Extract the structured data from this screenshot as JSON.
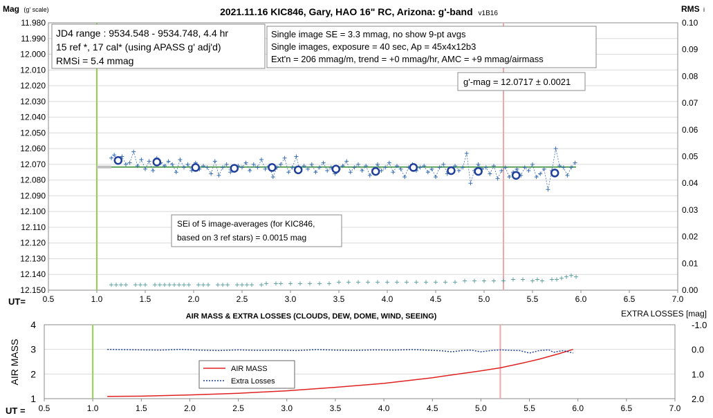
{
  "chart_data": [
    {
      "type": "scatter",
      "title": "2021.11.16 KIC846, Gary, HAO 16\" RC, Arizona: g'-band",
      "version_tag": "v1B16",
      "ylabel": "Mag",
      "ylabel_note": "(g' scale)",
      "y2label": "RMS",
      "y2label_note": "i",
      "xlabel": "UT=",
      "xlim": [
        0.5,
        7.0
      ],
      "ylim_reversed": [
        11.98,
        12.15
      ],
      "y2lim": [
        0.0,
        0.1
      ],
      "x_ticks": [
        "0.5",
        "1.0",
        "1.5",
        "2.0",
        "2.5",
        "3.0",
        "3.5",
        "4.0",
        "4.5",
        "5.0",
        "5.5",
        "6.0",
        "6.5",
        "7.0"
      ],
      "y_ticks": [
        "11.980",
        "11.990",
        "12.000",
        "12.010",
        "12.020",
        "12.030",
        "12.040",
        "12.050",
        "12.060",
        "12.070",
        "12.080",
        "12.090",
        "12.100",
        "12.110",
        "12.120",
        "12.130",
        "12.140",
        "12.150"
      ],
      "y2_ticks": [
        "0.10",
        "0.09",
        "0.08",
        "0.07",
        "0.06",
        "0.05",
        "0.04",
        "0.03",
        "0.02",
        "0.01",
        "0.00"
      ],
      "grid": "horizontal",
      "annotations": {
        "jd_box": [
          "JD4 range : 9534.548 - 9534.748,  4.4  hr",
          "15 ref *, 17 cal* (using APASS g' adj'd)",
          "RMSi = 5.4 mmag"
        ],
        "info_box": [
          "Single image SE = 3.3 mmag, no show  9-pt avgs",
          "Single images, exposure = 40 sec, Ap = 45x4x12b3",
          "Ext'n = 206 mmag/m, trend = +0 mmag/hr, AMC = +9 mmag/airmass"
        ],
        "gmag_box": "g'-mag = 12.0717 ± 0.0021",
        "sei_box": [
          "SEi of 5 image-averages (for KIC846,",
          "based on 3 ref stars) = 0.0015 mag"
        ]
      },
      "vertical_markers": [
        {
          "x": 1.0,
          "color": "#92d050"
        },
        {
          "x": 5.2,
          "color": "#f4a6a6"
        }
      ],
      "trend_line": {
        "x": [
          1.15,
          5.95
        ],
        "y": [
          12.0717,
          12.0717
        ],
        "color": "#5aa05a"
      },
      "trend_line_gray": {
        "x": [
          1.0,
          1.15
        ],
        "y": [
          12.0717,
          12.0717
        ],
        "color": "#c0c0c0"
      },
      "series": [
        {
          "name": "",
          "kind": "single-images",
          "color": "#3a6fb0",
          "x": [
            1.15,
            1.18,
            1.22,
            1.26,
            1.3,
            1.34,
            1.38,
            1.42,
            1.46,
            1.5,
            1.54,
            1.58,
            1.62,
            1.66,
            1.7,
            1.74,
            1.78,
            1.82,
            1.86,
            1.9,
            1.94,
            1.98,
            2.02,
            2.06,
            2.1,
            2.14,
            2.18,
            2.22,
            2.26,
            2.3,
            2.34,
            2.38,
            2.42,
            2.46,
            2.5,
            2.54,
            2.58,
            2.62,
            2.66,
            2.7,
            2.74,
            2.78,
            2.82,
            2.86,
            2.9,
            2.94,
            2.98,
            3.02,
            3.06,
            3.1,
            3.14,
            3.18,
            3.22,
            3.26,
            3.3,
            3.34,
            3.38,
            3.42,
            3.46,
            3.5,
            3.54,
            3.58,
            3.62,
            3.66,
            3.7,
            3.74,
            3.78,
            3.82,
            3.86,
            3.9,
            3.94,
            3.98,
            4.02,
            4.06,
            4.1,
            4.14,
            4.18,
            4.22,
            4.26,
            4.3,
            4.34,
            4.38,
            4.42,
            4.46,
            4.5,
            4.54,
            4.58,
            4.62,
            4.66,
            4.7,
            4.74,
            4.78,
            4.82,
            4.86,
            4.9,
            4.94,
            4.98,
            5.02,
            5.06,
            5.1,
            5.14,
            5.18,
            5.22,
            5.26,
            5.3,
            5.34,
            5.38,
            5.42,
            5.46,
            5.5,
            5.54,
            5.58,
            5.62,
            5.66,
            5.7,
            5.74,
            5.78,
            5.82,
            5.86,
            5.9,
            5.94
          ],
          "y": [
            12.066,
            12.064,
            12.068,
            12.065,
            12.07,
            12.069,
            12.062,
            12.071,
            12.067,
            12.073,
            12.068,
            12.074,
            12.066,
            12.069,
            12.071,
            12.068,
            12.07,
            12.075,
            12.067,
            12.072,
            12.07,
            12.074,
            12.069,
            12.073,
            12.071,
            12.072,
            12.076,
            12.068,
            12.077,
            12.072,
            12.07,
            12.075,
            12.073,
            12.071,
            12.072,
            12.069,
            12.074,
            12.07,
            12.072,
            12.067,
            12.073,
            12.071,
            12.078,
            12.072,
            12.07,
            12.066,
            12.075,
            12.072,
            12.065,
            12.074,
            12.071,
            12.073,
            12.07,
            12.075,
            12.072,
            12.069,
            12.074,
            12.072,
            12.076,
            12.073,
            12.071,
            12.068,
            12.075,
            12.072,
            12.07,
            12.074,
            12.071,
            12.077,
            12.073,
            12.07,
            12.074,
            12.072,
            12.069,
            12.075,
            12.071,
            12.073,
            12.078,
            12.072,
            12.07,
            12.074,
            12.072,
            12.071,
            12.075,
            12.073,
            12.078,
            12.072,
            12.07,
            12.076,
            12.073,
            12.071,
            12.074,
            12.072,
            12.063,
            12.082,
            12.074,
            12.07,
            12.073,
            12.072,
            12.076,
            12.071,
            12.079,
            12.074,
            12.072,
            12.078,
            12.075,
            12.073,
            12.077,
            12.072,
            12.074,
            12.07,
            12.078,
            12.076,
            12.073,
            12.086,
            12.074,
            12.06,
            12.071,
            12.072,
            12.077,
            12.072,
            12.069
          ]
        },
        {
          "name": "",
          "kind": "9-point averages",
          "color": "#1f3f9a",
          "x": [
            1.22,
            1.62,
            2.02,
            2.42,
            2.81,
            3.08,
            3.47,
            3.88,
            4.27,
            4.66,
            4.94,
            5.33,
            5.73
          ],
          "y": [
            12.0675,
            12.0685,
            12.072,
            12.0725,
            12.072,
            12.0735,
            12.073,
            12.0745,
            12.072,
            12.074,
            12.0745,
            12.077,
            12.0755
          ]
        },
        {
          "name": "",
          "kind": "RMSi (right axis)",
          "color": "#5fa0a0",
          "x": [
            1.15,
            1.2,
            1.25,
            1.3,
            1.4,
            1.45,
            1.5,
            1.6,
            1.65,
            1.7,
            1.75,
            1.8,
            1.85,
            1.9,
            1.95,
            2.05,
            2.1,
            2.15,
            2.25,
            2.3,
            2.35,
            2.45,
            2.5,
            2.55,
            2.6,
            2.7,
            2.75,
            2.85,
            2.9,
            3.0,
            3.1,
            3.2,
            3.3,
            3.4,
            3.5,
            3.6,
            3.7,
            3.8,
            3.9,
            4.0,
            4.1,
            4.2,
            4.3,
            4.4,
            4.5,
            4.6,
            4.7,
            4.8,
            4.9,
            5.0,
            5.1,
            5.2,
            5.3,
            5.4,
            5.5,
            5.55,
            5.6,
            5.7,
            5.75,
            5.8,
            5.85,
            5.9,
            5.95
          ],
          "y": [
            0.002,
            0.002,
            0.002,
            0.002,
            0.002,
            0.002,
            0.002,
            0.002,
            0.002,
            0.002,
            0.002,
            0.002,
            0.002,
            0.002,
            0.002,
            0.002,
            0.002,
            0.002,
            0.002,
            0.002,
            0.002,
            0.002,
            0.002,
            0.002,
            0.002,
            0.002,
            0.0025,
            0.0025,
            0.0025,
            0.0025,
            0.0025,
            0.0025,
            0.0025,
            0.0025,
            0.003,
            0.003,
            0.003,
            0.003,
            0.003,
            0.003,
            0.003,
            0.003,
            0.003,
            0.003,
            0.003,
            0.003,
            0.003,
            0.0035,
            0.0035,
            0.0035,
            0.0035,
            0.0035,
            0.004,
            0.004,
            0.0035,
            0.004,
            0.0035,
            0.004,
            0.004,
            0.0045,
            0.005,
            0.0055,
            0.005
          ]
        }
      ]
    },
    {
      "type": "line",
      "title": "AIR MASS & EXTRA LOSSES (CLOUDS, DEW, DOME, WIND, SEEING)",
      "ylabel": "AIR MASS",
      "y2label": "EXTRA LOSSES [mag]",
      "xlabel": "UT =",
      "xlim": [
        0.5,
        7.0
      ],
      "ylim": [
        1,
        4
      ],
      "y2lim_reversed": [
        -1.0,
        2.0
      ],
      "x_ticks": [
        "0.5",
        "1.0",
        "1.5",
        "2.0",
        "2.5",
        "3.0",
        "3.5",
        "4.0",
        "4.5",
        "5.0",
        "5.5",
        "6.0",
        "6.5",
        "7.0"
      ],
      "y_ticks": [
        "4",
        "3",
        "2",
        "1"
      ],
      "y2_ticks": [
        "-1.0",
        "0.0",
        "1.0",
        "2.0"
      ],
      "legend": {
        "placement": "center-left",
        "entries": [
          "AIR MASS",
          "Extra Losses"
        ]
      },
      "vertical_markers": [
        {
          "x": 1.0,
          "color": "#92d050"
        },
        {
          "x": 5.2,
          "color": "#f4a6a6"
        }
      ],
      "series": [
        {
          "name": "AIR MASS",
          "color": "#e02020",
          "x": [
            1.15,
            1.5,
            2.0,
            2.5,
            3.0,
            3.5,
            4.0,
            4.5,
            5.0,
            5.2,
            5.4,
            5.6,
            5.8,
            5.95
          ],
          "y": [
            1.09,
            1.1,
            1.15,
            1.22,
            1.32,
            1.46,
            1.62,
            1.85,
            2.13,
            2.25,
            2.42,
            2.6,
            2.82,
            3.0
          ]
        },
        {
          "name": "Extra Losses",
          "color": "#1f3f9a",
          "x": [
            1.15,
            1.3,
            1.5,
            1.7,
            1.9,
            2.1,
            2.3,
            2.5,
            2.7,
            2.9,
            3.1,
            3.3,
            3.5,
            3.7,
            3.9,
            4.1,
            4.3,
            4.5,
            4.6,
            4.7,
            4.8,
            4.9,
            5.0,
            5.1,
            5.2,
            5.3,
            5.4,
            5.5,
            5.55,
            5.6,
            5.7,
            5.75,
            5.8,
            5.85,
            5.9,
            5.95
          ],
          "y": [
            0.0,
            0.01,
            0.02,
            0.03,
            0.0,
            0.03,
            0.05,
            0.02,
            0.04,
            0.03,
            0.05,
            0.01,
            0.03,
            0.04,
            0.02,
            0.03,
            0.01,
            0.04,
            0.06,
            0.1,
            0.05,
            0.03,
            0.1,
            0.05,
            0.02,
            0.04,
            0.05,
            0.15,
            0.1,
            0.05,
            0.02,
            0.12,
            0.08,
            0.05,
            0.1,
            0.15
          ]
        }
      ]
    }
  ]
}
